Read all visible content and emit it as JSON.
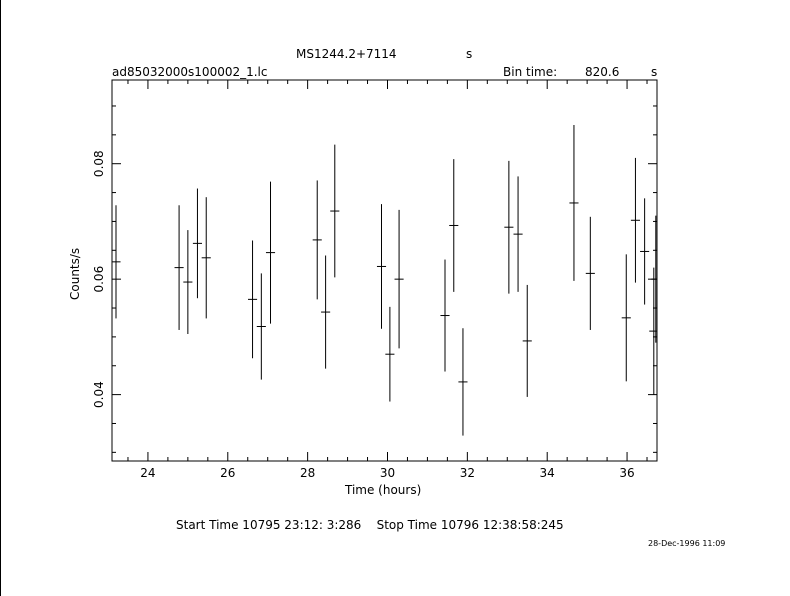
{
  "header": {
    "object": "MS1244.2+7114",
    "object_unit": "s",
    "file": "ad85032000s100002_1.lc",
    "bin_label": "Bin time:",
    "bin_value": "820.6",
    "bin_unit": "s"
  },
  "footer": {
    "start_stop": "Start Time 10795 23:12: 3:286    Stop Time 10796 12:38:58:245",
    "date_stamp": "28-Dec-1996 11:09"
  },
  "chart_data": {
    "type": "scatter",
    "xlabel": "Time (hours)",
    "ylabel": "Counts/s",
    "xlim": [
      23.1,
      36.75
    ],
    "ylim": [
      0.0285,
      0.0945
    ],
    "xticks": [
      24,
      26,
      28,
      30,
      32,
      34,
      36
    ],
    "yticks": [
      0.04,
      0.06,
      0.08
    ],
    "xtick_labels": [
      "24",
      "26",
      "28",
      "30",
      "32",
      "34",
      "36"
    ],
    "ytick_labels": [
      "0.04",
      "0.06",
      "0.08"
    ],
    "bin_half_width_hours": 0.114,
    "points": [
      {
        "x": 23.2,
        "y": 0.063,
        "err": 0.0098
      },
      {
        "x": 24.78,
        "y": 0.062,
        "err": 0.0108
      },
      {
        "x": 25.0,
        "y": 0.0595,
        "err": 0.009
      },
      {
        "x": 25.24,
        "y": 0.0662,
        "err": 0.0095
      },
      {
        "x": 25.46,
        "y": 0.0637,
        "err": 0.0105
      },
      {
        "x": 26.62,
        "y": 0.0565,
        "err": 0.0102
      },
      {
        "x": 26.84,
        "y": 0.0518,
        "err": 0.0092
      },
      {
        "x": 27.07,
        "y": 0.0646,
        "err": 0.0123
      },
      {
        "x": 28.24,
        "y": 0.0668,
        "err": 0.0103
      },
      {
        "x": 28.45,
        "y": 0.0543,
        "err": 0.0098
      },
      {
        "x": 28.68,
        "y": 0.0718,
        "err": 0.0115
      },
      {
        "x": 29.85,
        "y": 0.0622,
        "err": 0.0108
      },
      {
        "x": 30.06,
        "y": 0.047,
        "err": 0.0082
      },
      {
        "x": 30.29,
        "y": 0.06,
        "err": 0.012
      },
      {
        "x": 31.44,
        "y": 0.0537,
        "err": 0.0097
      },
      {
        "x": 31.66,
        "y": 0.0693,
        "err": 0.0115
      },
      {
        "x": 31.89,
        "y": 0.0422,
        "err": 0.0093
      },
      {
        "x": 33.04,
        "y": 0.069,
        "err": 0.0115
      },
      {
        "x": 33.27,
        "y": 0.0678,
        "err": 0.01
      },
      {
        "x": 33.5,
        "y": 0.0493,
        "err": 0.0097
      },
      {
        "x": 34.67,
        "y": 0.0732,
        "err": 0.0135
      },
      {
        "x": 35.08,
        "y": 0.061,
        "err": 0.0098
      },
      {
        "x": 35.98,
        "y": 0.0533,
        "err": 0.011
      },
      {
        "x": 36.21,
        "y": 0.0702,
        "err": 0.0108
      },
      {
        "x": 36.44,
        "y": 0.0648,
        "err": 0.0092
      },
      {
        "x": 36.67,
        "y": 0.051,
        "err": 0.011
      },
      {
        "x": 36.72,
        "y": 0.06,
        "err": 0.011
      }
    ]
  }
}
